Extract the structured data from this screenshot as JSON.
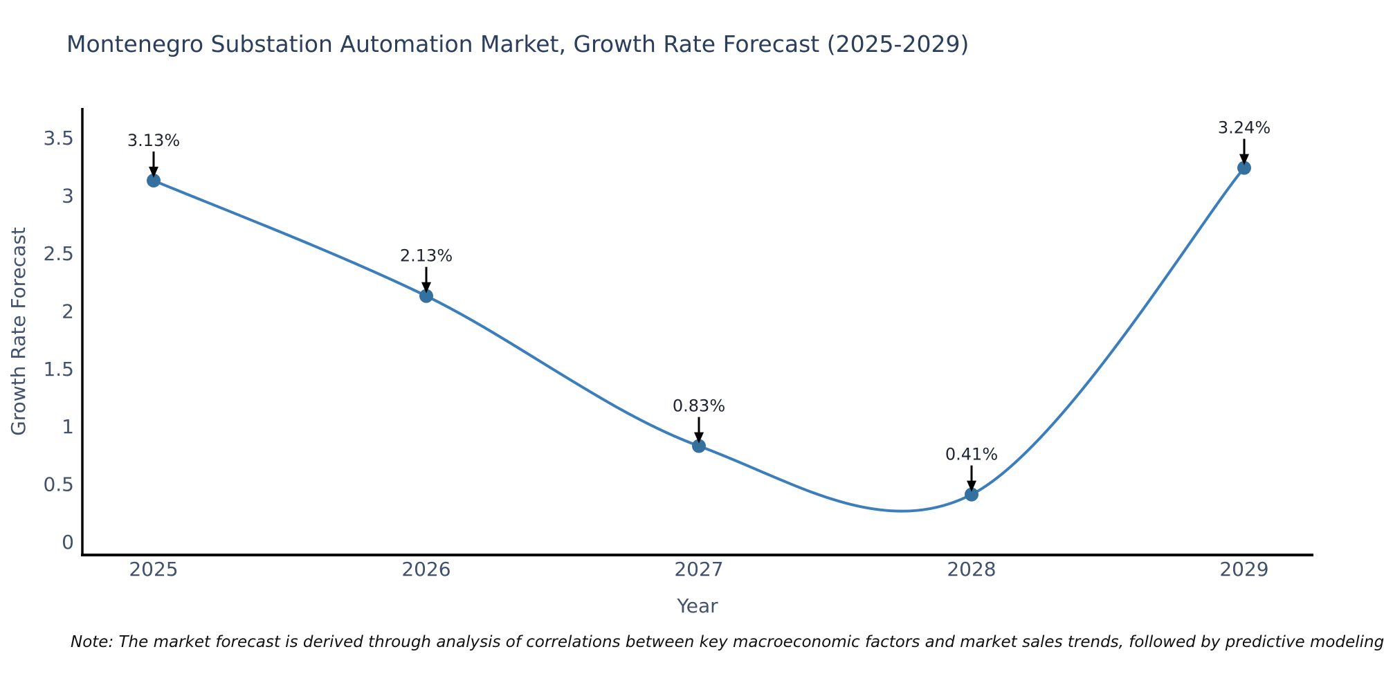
{
  "title": "Montenegro Substation Automation Market, Growth Rate Forecast (2025-2029)",
  "note": "Note: The market forecast is derived through analysis of correlations between key macroeconomic factors and market sales trends, followed by predictive modeling to project future sales",
  "chart_data": {
    "type": "line",
    "title": "Montenegro Substation Automation Market, Growth Rate Forecast (2025-2029)",
    "xlabel": "Year",
    "ylabel": "Growth Rate Forecast",
    "categories": [
      "2025",
      "2026",
      "2027",
      "2028",
      "2029"
    ],
    "values": [
      3.13,
      2.13,
      0.83,
      0.41,
      3.24
    ],
    "point_labels": [
      "3.13%",
      "2.13%",
      "0.83%",
      "0.41%",
      "3.24%"
    ],
    "y_ticks": [
      0,
      0.5,
      1,
      1.5,
      2,
      2.5,
      3,
      3.5
    ],
    "y_tick_labels": [
      "0",
      "0.5",
      "1",
      "1.5",
      "2",
      "2.5",
      "3",
      "3.5"
    ],
    "ylim": [
      -0.11,
      3.63
    ],
    "line_shape": "spline",
    "grid": false,
    "legend_visible": false,
    "annotation_arrows": true,
    "colors": {
      "line": "#3c7dbc",
      "marker": "#35719f",
      "axis": "#000000",
      "tick_text": "#42516d",
      "title_text": "#2b3e5c",
      "annotation_text": "#1f2430",
      "arrow": "#000000",
      "note_text": "#111111",
      "background": "#ffffff"
    }
  }
}
